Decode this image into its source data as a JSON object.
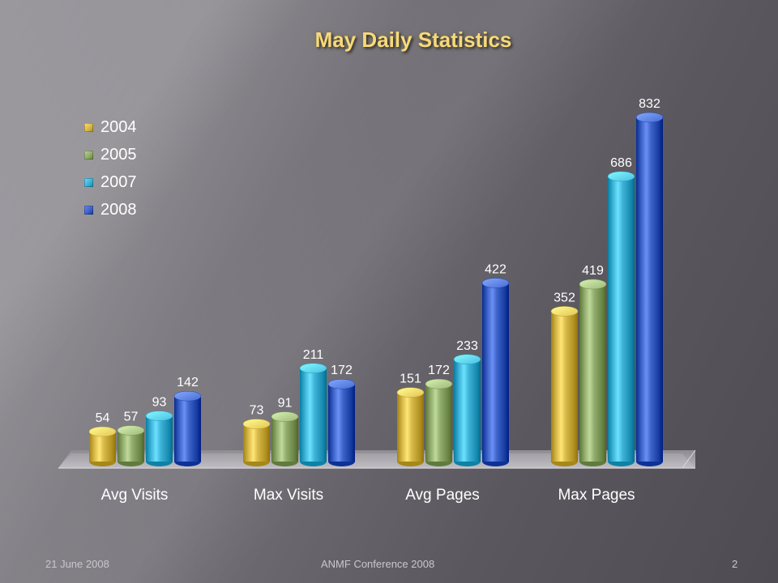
{
  "slide": {
    "title": "May Daily Statistics",
    "footer_left": "21 June 2008",
    "footer_center": "ANMF Conference 2008",
    "footer_right": "2"
  },
  "colors": {
    "2004": "#d8b94a",
    "2005": "#92ad6e",
    "2007": "#3fb4d8",
    "2008": "#3e63c9"
  },
  "chart_data": {
    "type": "bar",
    "title": "May Daily Statistics",
    "categories": [
      "Avg Visits",
      "Max Visits",
      "Avg Pages",
      "Max Pages"
    ],
    "series": [
      {
        "name": "2004",
        "values": [
          54,
          73,
          151,
          352
        ]
      },
      {
        "name": "2005",
        "values": [
          57,
          91,
          172,
          419
        ]
      },
      {
        "name": "2007",
        "values": [
          93,
          211,
          233,
          686
        ]
      },
      {
        "name": "2008",
        "values": [
          142,
          172,
          422,
          832
        ]
      }
    ],
    "ylim": [
      0,
      900
    ],
    "grid": false,
    "legend_position": "top-left",
    "data_labels": true,
    "style": "3d-cylinder"
  }
}
